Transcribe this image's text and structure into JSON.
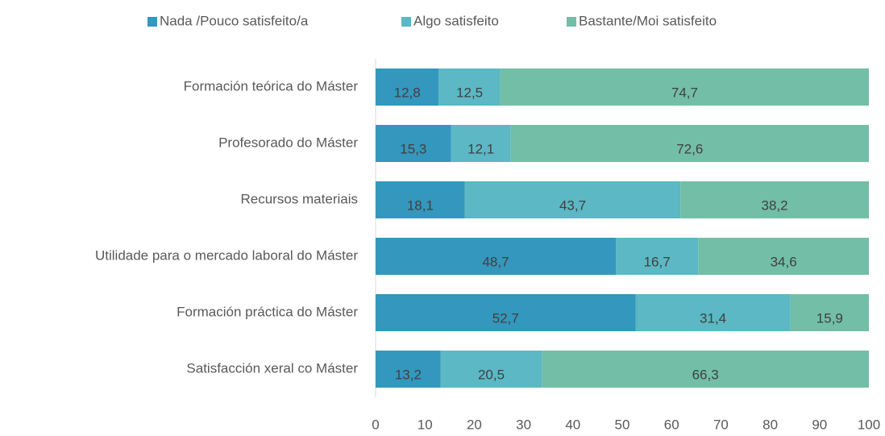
{
  "chart_data": {
    "type": "stacked-bar-horizontal",
    "categories": [
      "Formación teórica do Máster",
      "Profesorado do Máster",
      "Recursos materiais",
      "Utilidade para o mercado laboral do Máster",
      "Formación práctica do Máster",
      "Satisfacción xeral co Máster"
    ],
    "series": [
      {
        "name": "Nada /Pouco satisfeito/a",
        "color": "#3497bd",
        "values": [
          12.8,
          15.3,
          18.1,
          48.7,
          52.7,
          13.2
        ],
        "value_labels": [
          "12,8",
          "15,3",
          "18,1",
          "48,7",
          "52,7",
          "13,2"
        ]
      },
      {
        "name": "Algo satisfeito",
        "color": "#5bb8c4",
        "values": [
          12.5,
          12.1,
          43.7,
          16.7,
          31.4,
          20.5
        ],
        "value_labels": [
          "12,5",
          "12,1",
          "43,7",
          "16,7",
          "31,4",
          "20,5"
        ]
      },
      {
        "name": "Bastante/Moi satisfeito",
        "color": "#72bea6",
        "values": [
          74.7,
          72.6,
          38.2,
          34.6,
          15.9,
          66.3
        ],
        "value_labels": [
          "74,7",
          "72,6",
          "38,2",
          "34,6",
          "15,9",
          "66,3"
        ]
      }
    ],
    "xlim": [
      0,
      100
    ],
    "xticks": [
      0,
      10,
      20,
      30,
      40,
      50,
      60,
      70,
      80,
      90,
      100
    ],
    "legend": "top",
    "grid": false
  }
}
